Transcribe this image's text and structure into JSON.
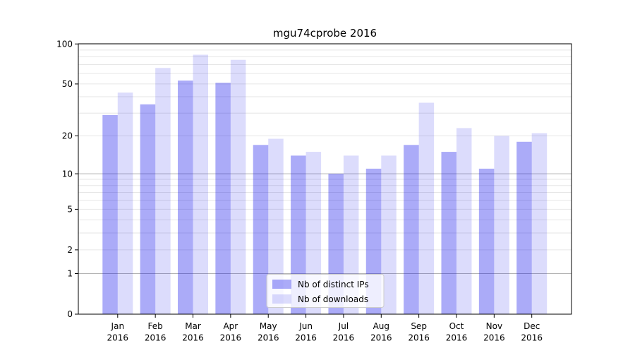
{
  "chart_data": {
    "type": "bar",
    "title": "mgu74cprobe 2016",
    "categories": [
      "Jan",
      "Feb",
      "Mar",
      "Apr",
      "May",
      "Jun",
      "Jul",
      "Aug",
      "Sep",
      "Oct",
      "Nov",
      "Dec"
    ],
    "x_tick_second_line": "2016",
    "series": [
      {
        "name": "Nb of distinct IPs",
        "color": "rgba(10,10,235,0.34)",
        "values": [
          29,
          35,
          53,
          51,
          17,
          14,
          10,
          11,
          17,
          15,
          11,
          18
        ]
      },
      {
        "name": "Nb of downloads",
        "color": "rgba(10,10,235,0.14)",
        "values": [
          43,
          66,
          83,
          76,
          19,
          15,
          14,
          14,
          36,
          23,
          20,
          21
        ]
      }
    ],
    "yscale": "log1p",
    "ylim": [
      0,
      100.3
    ],
    "yticks": [
      0,
      1,
      2,
      5,
      10,
      20,
      50,
      100
    ],
    "grid": true,
    "major_grid_values": [
      1,
      10,
      100
    ],
    "minor_grid_values": [
      2,
      3,
      4,
      5,
      6,
      7,
      8,
      9,
      20,
      30,
      40,
      50,
      60,
      70,
      80,
      90
    ],
    "legend_position": "bottom-center",
    "colors": {
      "major_grid": "#b3b3b3",
      "minor_grid": "#e6e6e6",
      "axis": "#000000",
      "legend_border": "#cccccc",
      "legend_fill": "rgba(255,255,255,0.8)"
    }
  }
}
